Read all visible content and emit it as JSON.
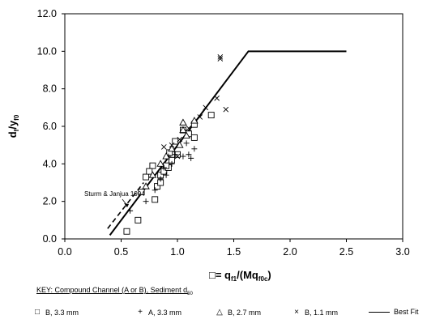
{
  "chart_data": {
    "type": "scatter",
    "y_axis_title": {
      "main": "d",
      "sub1": "f",
      "mid": "/y",
      "sub2": "f0"
    },
    "x_axis_title": {
      "main": "□= q",
      "sub1": "f1",
      "mid": "/(Mq",
      "sub2": "f0c",
      "end": ")"
    },
    "xlim": [
      0.0,
      3.0
    ],
    "ylim": [
      0.0,
      12.0
    ],
    "x_ticks": [
      "0.0",
      "0.5",
      "1.0",
      "1.5",
      "2.0",
      "2.5",
      "3.0"
    ],
    "y_ticks": [
      "0.0",
      "2.0",
      "4.0",
      "6.0",
      "8.0",
      "10.0",
      "12.0"
    ],
    "grid": false,
    "key_text": "KEY:  Compound Channel (A or B), Sediment d",
    "key_sub": "50",
    "annotation": "Sturm & Janjua 1994",
    "series": [
      {
        "name": "B, 3.3 mm",
        "marker": "square",
        "points": [
          [
            0.55,
            0.4
          ],
          [
            0.65,
            1.0
          ],
          [
            0.8,
            2.1
          ],
          [
            0.82,
            2.8
          ],
          [
            0.85,
            3.4
          ],
          [
            0.88,
            3.6
          ],
          [
            0.92,
            3.8
          ],
          [
            0.95,
            4.2
          ],
          [
            0.95,
            4.5
          ],
          [
            0.72,
            3.3
          ],
          [
            0.78,
            3.9
          ],
          [
            0.85,
            3.0
          ],
          [
            0.9,
            3.9
          ],
          [
            0.93,
            4.6
          ],
          [
            1.0,
            4.5
          ],
          [
            0.98,
            5.2
          ],
          [
            1.05,
            5.8
          ],
          [
            1.1,
            5.6
          ],
          [
            1.15,
            5.4
          ],
          [
            1.15,
            6.1
          ],
          [
            1.3,
            6.6
          ],
          [
            0.68,
            2.5
          ],
          [
            0.75,
            3.6
          ]
        ]
      },
      {
        "name": "A, 3.3 mm",
        "marker": "plus",
        "points": [
          [
            0.58,
            1.5
          ],
          [
            0.72,
            2.0
          ],
          [
            0.8,
            2.6
          ],
          [
            0.85,
            3.2
          ],
          [
            0.9,
            3.4
          ],
          [
            0.95,
            4.0
          ],
          [
            0.98,
            4.5
          ],
          [
            1.05,
            4.4
          ],
          [
            1.1,
            4.5
          ],
          [
            1.15,
            4.8
          ],
          [
            1.12,
            4.3
          ],
          [
            1.08,
            5.1
          ],
          [
            0.88,
            3.8
          ],
          [
            0.92,
            4.4
          ]
        ]
      },
      {
        "name": "B, 2.7 mm",
        "marker": "triangle",
        "points": [
          [
            0.72,
            2.8
          ],
          [
            0.78,
            3.4
          ],
          [
            0.85,
            4.0
          ],
          [
            0.9,
            4.4
          ],
          [
            0.95,
            4.8
          ],
          [
            1.02,
            5.0
          ],
          [
            1.05,
            5.8
          ],
          [
            1.05,
            6.2
          ],
          [
            1.15,
            6.3
          ],
          [
            1.08,
            5.5
          ]
        ]
      },
      {
        "name": "B, 1.1 mm",
        "marker": "x",
        "points": [
          [
            0.88,
            4.9
          ],
          [
            0.95,
            5.0
          ],
          [
            1.0,
            4.4
          ],
          [
            1.02,
            5.3
          ],
          [
            1.1,
            5.9
          ],
          [
            1.2,
            6.5
          ],
          [
            1.25,
            7.0
          ],
          [
            1.35,
            7.5
          ],
          [
            1.38,
            9.6
          ],
          [
            1.38,
            9.7
          ],
          [
            1.43,
            6.9
          ]
        ]
      }
    ],
    "best_fit": {
      "name": "Best Fit",
      "points": [
        [
          0.4,
          0.2
        ],
        [
          1.63,
          10.0
        ],
        [
          2.5,
          10.0
        ]
      ]
    },
    "sturm_janjua_1994": {
      "points": [
        [
          0.38,
          0.55
        ],
        [
          0.7,
          3.0
        ]
      ]
    }
  }
}
